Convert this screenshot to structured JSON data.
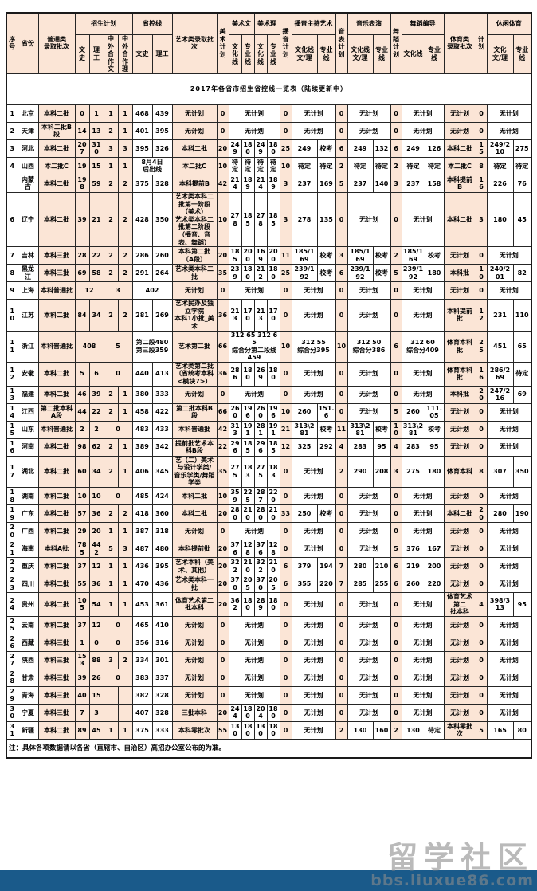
{
  "title": "2017年各省市招生省控线一览表（陆续更新中）",
  "note": "注：具体各项数据请以各省（直辖市、自治区）高招办公室公布的为准。",
  "watermark": {
    "text": "留学社区",
    "url": "bbs.liuxue86.com"
  },
  "colors": {
    "peach": "#fbe5d6",
    "blue_bar": "#1a5a8a",
    "border": "#262626",
    "title_text": "#000000"
  },
  "table": {
    "header_row1": [
      {
        "t": "序\n号",
        "r": 2
      },
      {
        "t": "省份",
        "r": 2
      },
      {
        "t": "普通类\n录取批次",
        "r": 2
      },
      {
        "t": "招生计划",
        "c": 4
      },
      {
        "t": "省控线",
        "c": 2
      },
      {
        "t": "艺术类录取批次",
        "r": 2
      },
      {
        "t": "美术\n计划",
        "r": 2
      },
      {
        "t": "美术文",
        "c": 2
      },
      {
        "t": "美术理",
        "c": 2
      },
      {
        "t": "播音\n计划",
        "r": 2
      },
      {
        "t": "播音主持艺术",
        "c": 2
      },
      {
        "t": "音表\n计划",
        "r": 2
      },
      {
        "t": "音乐表演",
        "c": 2
      },
      {
        "t": "舞蹈\n计划",
        "r": 2
      },
      {
        "t": "舞蹈编导",
        "c": 2
      },
      {
        "t": "体育类\n录取批次",
        "r": 2
      },
      {
        "t": "计划",
        "r": 2
      },
      {
        "t": "休闲体育",
        "c": 2
      }
    ],
    "header_row2": [
      "文史",
      "理工",
      "中外合\n作文",
      "中外合\n作理",
      "文史",
      "理工",
      "文化\n线",
      "专业\n线",
      "文化\n线",
      "专业\n线",
      "文化线\n文/理",
      "专业线",
      "文化线\n文/理",
      "专业线",
      "文化线",
      "专业线",
      "文化\n文/理",
      "专业线"
    ],
    "rows": [
      [
        "1",
        "北京",
        "本科二批",
        "0",
        "1",
        "1",
        "1",
        "468",
        "439",
        "无计划",
        "0",
        {
          "t": "无计划",
          "c": 4
        },
        "0",
        {
          "t": "无计划",
          "c": 2
        },
        "0",
        {
          "t": "无计划",
          "c": 2
        },
        "0",
        {
          "t": "无计划",
          "c": 2
        },
        "无计划",
        "0",
        {
          "t": "无计划",
          "c": 2
        }
      ],
      [
        "2",
        "天津",
        "本科二批B段",
        "14",
        "13",
        "2",
        "1",
        "401",
        "395",
        "无计划",
        "0",
        {
          "t": "无计划",
          "c": 4
        },
        "0",
        {
          "t": "无计划",
          "c": 2
        },
        "0",
        {
          "t": "无计划",
          "c": 2
        },
        "0",
        {
          "t": "无计划",
          "c": 2
        },
        "无计划",
        "0",
        {
          "t": "无计划",
          "c": 2
        }
      ],
      [
        "3",
        "河北",
        "本科二批",
        "207",
        "310",
        "3",
        "3",
        "395",
        "326",
        "本科二批",
        "20",
        "249",
        "180",
        "249",
        "180",
        "25",
        "249",
        "校考",
        "6",
        "249",
        "132",
        "6",
        "249",
        "126",
        "本科二批",
        "15",
        "249/210",
        "275"
      ],
      [
        "4",
        "山西",
        "本二批C",
        "19",
        "15",
        "1",
        "1",
        {
          "t": "8月4日\n后出线",
          "c": 2
        },
        "本二批C",
        "10",
        "待定",
        "待定",
        "待定",
        "待定",
        "10",
        "待定",
        "待定",
        "2",
        "待定",
        "待定",
        "2",
        "待定",
        "待定",
        "本二批C",
        "8",
        "待定",
        "待定"
      ],
      [
        "",
        "内蒙古",
        "本科二批",
        "198",
        "59",
        "2",
        "2",
        "375",
        "328",
        "本科提前B",
        "42",
        "214",
        "189",
        "214",
        "189",
        "3",
        "237",
        "169",
        "5",
        "237",
        "140",
        "3",
        "237",
        "158",
        "本科提前B",
        "16",
        "226",
        "76"
      ],
      [
        "6",
        "辽宁",
        "本科二批",
        "39",
        "21",
        "2",
        "2",
        "428",
        "350",
        "艺术类本科二批第一阶段\n（美术）\n艺术类本科二批第二阶段\n（播音、音表、舞蹈）",
        "10",
        "278",
        "185",
        "278",
        "185",
        "3",
        "278",
        "135",
        "0",
        {
          "t": "无计划",
          "c": 2
        },
        "0",
        {
          "t": "无计划",
          "c": 2
        },
        "本科二批",
        "3",
        "180",
        "45"
      ],
      [
        "7",
        "吉林",
        "本科三批",
        "28",
        "22",
        "2",
        "2",
        "286",
        "260",
        "本科第二批（A段）",
        "20",
        "185",
        "200",
        "169",
        "200",
        "11",
        "185/169",
        "校考",
        "3",
        "185/169",
        "校考",
        "2",
        "185/169",
        "校考",
        "无计划",
        "0",
        {
          "t": "无计划",
          "c": 2
        }
      ],
      [
        "8",
        "黑龙江",
        "本科三批",
        "69",
        "58",
        "2",
        "2",
        "291",
        "264",
        "艺术类本科二批",
        "35",
        "239",
        "180",
        "212",
        "180",
        "25",
        "239/192",
        "校考",
        "6",
        "239/192",
        "校考",
        "5",
        "239/192",
        "180",
        "本科批",
        "10",
        "240/201",
        "82"
      ],
      [
        "9",
        "上海",
        "本科普通批",
        {
          "t": "12",
          "c": 2
        },
        {
          "t": "3",
          "c": 2
        },
        {
          "t": "402",
          "c": 2
        },
        "无计划",
        "0",
        {
          "t": "无计划",
          "c": 4
        },
        "0",
        {
          "t": "无计划",
          "c": 2
        },
        "0",
        {
          "t": "无计划",
          "c": 2
        },
        "0",
        {
          "t": "无计划",
          "c": 2
        },
        "无计划",
        "0",
        {
          "t": "无计划",
          "c": 2
        }
      ],
      [
        "10",
        "江苏",
        "本科二批",
        "84",
        "34",
        "2",
        "2",
        "281",
        "269",
        "艺术民办及独立学院\n本科1小批_美术",
        "36",
        "213",
        "170",
        "213",
        "170",
        "0",
        {
          "t": "无计划",
          "c": 2
        },
        "0",
        {
          "t": "无计划",
          "c": 2
        },
        "0",
        {
          "t": "无计划",
          "c": 2
        },
        "本科提前批",
        "12",
        "231",
        "110"
      ],
      [
        "11",
        "浙江",
        "本科普通批",
        {
          "t": "408",
          "c": 2
        },
        {
          "t": "5",
          "c": 2
        },
        {
          "t": "第二段480\n第三段359",
          "c": 2
        },
        "艺术第二批",
        "66",
        {
          "t": "312  65  312  65\n综合分第二段线459",
          "c": 4
        },
        "10",
        {
          "t": "312   55\n综合分395",
          "c": 2
        },
        "10",
        {
          "t": "312   50\n综合分386",
          "c": 2
        },
        "6",
        {
          "t": "312   60\n综合分409",
          "c": 2
        },
        "体育本科批",
        "25",
        "451",
        "65"
      ],
      [
        "12",
        "安徽",
        "本科二批",
        "5",
        "6",
        {
          "t": "0",
          "c": 2
        },
        "440",
        "413",
        "艺术类第二批\n（省统考本科<模块7>）",
        "36",
        "286",
        "180",
        "269",
        "180",
        "0",
        {
          "t": "无计划",
          "c": 2
        },
        "0",
        {
          "t": "无计划",
          "c": 2
        },
        "0",
        {
          "t": "无计划",
          "c": 2
        },
        "体育本科批",
        "16",
        "286/269",
        "待定"
      ],
      [
        "13",
        "福建",
        "本科二批",
        "46",
        "39",
        "2",
        "1",
        "380",
        "333",
        "无计划",
        "0",
        {
          "t": "无计划",
          "c": 4
        },
        "0",
        {
          "t": "无计划",
          "c": 2
        },
        "0",
        {
          "t": "无计划",
          "c": 2
        },
        "0",
        {
          "t": "无计划",
          "c": 2
        },
        "本科批",
        "20",
        "247/216",
        "69"
      ],
      [
        "14",
        "江西",
        "第二批本科A段",
        "44",
        "22",
        "2",
        "1",
        "458",
        "422",
        "第二批本科B段",
        "66",
        "260",
        "196",
        "260",
        "196",
        "10",
        "260",
        "151.6",
        "0",
        {
          "t": "无计划",
          "c": 2
        },
        "5",
        "260",
        "111.05",
        "无计划",
        "0",
        {
          "t": "无计划",
          "c": 2
        }
      ],
      [
        "15",
        "山东",
        "本科普通批",
        "2",
        "2",
        {
          "t": "0",
          "c": 2
        },
        "483",
        "433",
        "本科普通批",
        "42",
        "313",
        "191",
        "281",
        "191",
        "21",
        "313\\281",
        "校考",
        "11",
        "313\\281",
        "校考",
        "10",
        "313\\281",
        "校考",
        "无计划",
        "0",
        {
          "t": "无计划",
          "c": 2
        }
      ],
      [
        "16",
        "河南",
        "本科二批",
        "98",
        "62",
        "2",
        "1",
        "389",
        "342",
        "提前批艺术本科B段",
        "22",
        "296",
        "185",
        "296",
        "185",
        "12",
        "325",
        "292",
        "4",
        "283",
        "95",
        "4",
        "283",
        "95",
        "无计划",
        "0",
        {
          "t": "无计划",
          "c": 2
        }
      ],
      [
        "17",
        "湖北",
        "本科二批",
        "60",
        "34",
        "2",
        "1",
        "406",
        "345",
        "艺（二）美术与设计学类/\n音乐学类/舞蹈学类",
        "35",
        "275",
        "183",
        "275",
        "183",
        "0",
        {
          "t": "无计划",
          "c": 2
        },
        "2",
        "290",
        "208",
        "3",
        "275",
        "180",
        "体育本科",
        "8",
        "307",
        "350"
      ],
      [
        "18",
        "湖南",
        "本科二批",
        "10",
        "10",
        {
          "t": "0",
          "c": 2
        },
        "485",
        "424",
        "本科二批",
        "10",
        "359",
        "225",
        "287",
        "220",
        "0",
        {
          "t": "无计划",
          "c": 2
        },
        "0",
        {
          "t": "无计划",
          "c": 2
        },
        "0",
        {
          "t": "无计划",
          "c": 2
        },
        "无计划",
        "0",
        {
          "t": "无计划",
          "c": 2
        }
      ],
      [
        "19",
        "广东",
        "本科二批",
        "57",
        "36",
        "2",
        "2",
        "418",
        "360",
        "本科二批",
        "20",
        "280",
        "210",
        "280",
        "210",
        "33",
        "250",
        "校考",
        "0",
        {
          "t": "无计划",
          "c": 2
        },
        "0",
        {
          "t": "无计划",
          "c": 2
        },
        "本科二批",
        "20",
        "280",
        "190"
      ],
      [
        "20",
        "广西",
        "本科二批",
        "29",
        "20",
        "1",
        "1",
        "387",
        "318",
        "无计划",
        "0",
        {
          "t": "无计划",
          "c": 4
        },
        "0",
        {
          "t": "无计划",
          "c": 2
        },
        "0",
        {
          "t": "无计划",
          "c": 2
        },
        "0",
        {
          "t": "无计划",
          "c": 2
        },
        "无计划",
        "0",
        {
          "t": "无计划",
          "c": 2
        }
      ],
      [
        "21",
        "海南",
        "本科A批",
        "785",
        "442",
        "5",
        "3",
        "487",
        "480",
        "本科提前批",
        "20",
        "376",
        "128",
        "376",
        "128",
        "0",
        {
          "t": "无计划",
          "c": 2
        },
        "0",
        {
          "t": "无计划",
          "c": 2
        },
        "5",
        "376",
        "167",
        "无计划",
        "0",
        {
          "t": "无计划",
          "c": 2
        }
      ],
      [
        "22",
        "重庆",
        "本科二批",
        "37",
        "12",
        "1",
        "1",
        "436",
        "395",
        "艺术本科（美术、其他）",
        "20",
        "322",
        "210",
        "322",
        "210",
        "6",
        "379",
        "194",
        "7",
        "280",
        "210",
        "6",
        "219",
        "200",
        "无计划",
        "0",
        {
          "t": "无计划",
          "c": 2
        }
      ],
      [
        "23",
        "四川",
        "本科二批",
        "55",
        "36",
        "1",
        "1",
        "470",
        "436",
        "艺术类本科一批",
        "20",
        "370",
        "205",
        "370",
        "205",
        "6",
        "355",
        "220",
        "7",
        "285",
        "255",
        "6",
        "260",
        "220",
        "无计划",
        "0",
        {
          "t": "无计划",
          "c": 2
        }
      ],
      [
        "24",
        "贵州",
        "本科二批",
        "105",
        "54",
        "1",
        "1",
        "453",
        "361",
        "体育艺术第二批本科",
        "20",
        "362",
        "180",
        "289",
        "180",
        "0",
        {
          "t": "无计划",
          "c": 2
        },
        "0",
        {
          "t": "无计划",
          "c": 2
        },
        "0",
        {
          "t": "无计划",
          "c": 2
        },
        "体育艺术第二\n批本科",
        "4",
        "398/313",
        "95"
      ],
      [
        "25",
        "云南",
        "本科二批",
        "37",
        "12",
        {
          "t": "0",
          "c": 2
        },
        "465",
        "410",
        "无计划",
        "0",
        {
          "t": "无计划",
          "c": 4
        },
        "0",
        {
          "t": "无计划",
          "c": 2
        },
        "0",
        {
          "t": "无计划",
          "c": 2
        },
        "0",
        {
          "t": "无计划",
          "c": 2
        },
        "无计划",
        "0",
        {
          "t": "无计划",
          "c": 2
        }
      ],
      [
        "26",
        "西藏",
        "本科三批",
        "1",
        "0",
        {
          "t": "0",
          "c": 2
        },
        "356",
        "316",
        "无计划",
        "0",
        {
          "t": "无计划",
          "c": 4
        },
        "0",
        {
          "t": "无计划",
          "c": 2
        },
        "0",
        {
          "t": "无计划",
          "c": 2
        },
        "0",
        {
          "t": "无计划",
          "c": 2
        },
        "无计划",
        "0",
        {
          "t": "无计划",
          "c": 2
        }
      ],
      [
        "27",
        "陕西",
        "本科三批",
        "153",
        "88",
        "3",
        "2",
        "334",
        "301",
        "无计划",
        "0",
        {
          "t": "无计划",
          "c": 4
        },
        "0",
        {
          "t": "无计划",
          "c": 2
        },
        "0",
        {
          "t": "无计划",
          "c": 2
        },
        "0",
        {
          "t": "无计划",
          "c": 2
        },
        "无计划",
        "0",
        {
          "t": "无计划",
          "c": 2
        }
      ],
      [
        "28",
        "甘肃",
        "本科三批",
        "39",
        "26",
        {
          "t": "0",
          "c": 2
        },
        "383",
        "337",
        "无计划",
        "0",
        {
          "t": "无计划",
          "c": 4
        },
        "0",
        {
          "t": "无计划",
          "c": 2
        },
        "0",
        {
          "t": "无计划",
          "c": 2
        },
        "0",
        {
          "t": "无计划",
          "c": 2
        },
        "无计划",
        "0",
        {
          "t": "无计划",
          "c": 2
        }
      ],
      [
        "29",
        "青海",
        "本科三批",
        "40",
        "15",
        "",
        "",
        "382",
        "328",
        "无计划",
        "0",
        {
          "t": "无计划",
          "c": 4
        },
        "0",
        {
          "t": "无计划",
          "c": 2
        },
        "0",
        {
          "t": "无计划",
          "c": 2
        },
        "0",
        {
          "t": "无计划",
          "c": 2
        },
        "无计划",
        "0",
        {
          "t": "无计划",
          "c": 2
        }
      ],
      [
        "30",
        "宁夏",
        "本科三批",
        "7",
        "3",
        "",
        "",
        "407",
        "328",
        "三批本科",
        "20",
        "244",
        "180",
        "204",
        "180",
        "0",
        {
          "t": "无计划",
          "c": 2
        },
        "0",
        {
          "t": "无计划",
          "c": 2
        },
        "0",
        {
          "t": "无计划",
          "c": 2
        },
        "无计划",
        "0",
        {
          "t": "无计划",
          "c": 2
        }
      ],
      [
        "31",
        "新疆",
        "本科二批",
        "89",
        "45",
        "1",
        "1",
        "375",
        "333",
        "本科零批次",
        "55",
        "130",
        "180",
        "130",
        "180",
        "0",
        {
          "t": "无计划",
          "c": 2
        },
        "2",
        "130",
        "160",
        "2",
        "130",
        "待定",
        "本科零批次",
        "5",
        "165",
        "80"
      ]
    ]
  }
}
